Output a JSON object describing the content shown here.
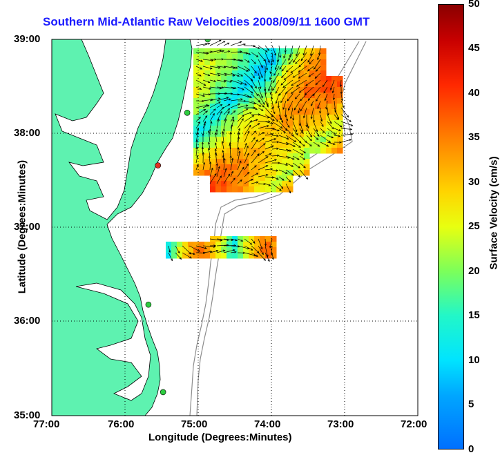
{
  "title": "Southern Mid-Atlantic Raw Velocities 2008/09/11 1600 GMT",
  "x_axis": {
    "label": "Longitude (Degrees:Minutes)",
    "ticks": [
      "77:00",
      "76:00",
      "75:00",
      "74:00",
      "73:00",
      "72:00"
    ]
  },
  "y_axis": {
    "label": "Latitude (Degrees:Minutes)",
    "ticks": [
      "39:00",
      "38:00",
      "37:00",
      "36:00",
      "35:00"
    ]
  },
  "colorbar": {
    "label": "Surface Velocity (cm/s)",
    "ticks": [
      "50",
      "45",
      "40",
      "35",
      "30",
      "25",
      "20",
      "15",
      "10",
      "5",
      "0"
    ],
    "range": [
      0,
      50
    ],
    "colors": [
      "#0070ff",
      "#00e4ff",
      "#7cff5a",
      "#e8ff10",
      "#ff8000",
      "#ff2800",
      "#8a0000"
    ]
  },
  "map": {
    "lon_range": [
      -77,
      -72
    ],
    "lat_range": [
      35,
      39
    ],
    "land_color": "#5ef2b0",
    "stations": [
      {
        "lon": -74.87,
        "lat": 39.0,
        "color": "#2ecc40"
      },
      {
        "lon": -75.15,
        "lat": 38.22,
        "color": "#2ecc40"
      },
      {
        "lon": -75.55,
        "lat": 37.66,
        "color": "#e03020"
      },
      {
        "lon": -75.68,
        "lat": 36.18,
        "color": "#2ecc40"
      },
      {
        "lon": -75.48,
        "lat": 35.25,
        "color": "#2ecc40"
      }
    ]
  }
}
